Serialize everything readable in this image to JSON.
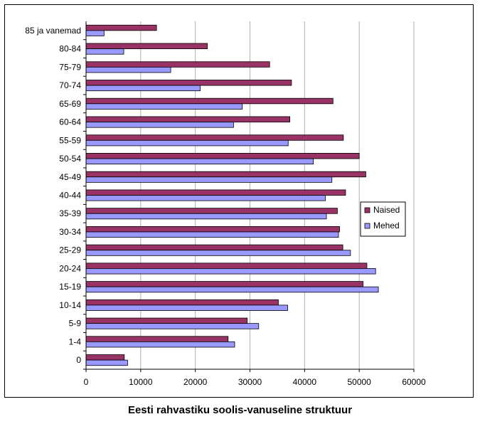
{
  "chart_data": {
    "type": "bar",
    "orientation": "horizontal",
    "title": "Eesti rahvastiku soolis-vanuseline struktuur",
    "categories": [
      "0",
      "1-4",
      "5-9",
      "10-14",
      "15-19",
      "20-24",
      "25-29",
      "30-34",
      "35-39",
      "40-44",
      "45-49",
      "50-54",
      "55-59",
      "60-64",
      "65-69",
      "70-74",
      "75-79",
      "80-84",
      "85 ja vanemad"
    ],
    "series": [
      {
        "name": "Naised",
        "color": "#993366",
        "values": [
          7000,
          26000,
          29500,
          35200,
          50700,
          51400,
          47000,
          46400,
          46000,
          47500,
          51200,
          50000,
          47100,
          37300,
          45200,
          37600,
          33600,
          22200,
          12900
        ]
      },
      {
        "name": "Mehed",
        "color": "#9999ff",
        "values": [
          7600,
          27200,
          31600,
          36900,
          53500,
          53000,
          48400,
          46200,
          44000,
          43800,
          45000,
          41600,
          37000,
          27000,
          28600,
          20900,
          15500,
          6900,
          3300
        ]
      }
    ],
    "xlim": [
      0,
      60000
    ],
    "xticks": [
      "0",
      "10000",
      "20000",
      "30000",
      "40000",
      "50000",
      "60000"
    ],
    "grid": true,
    "legend": "right"
  }
}
